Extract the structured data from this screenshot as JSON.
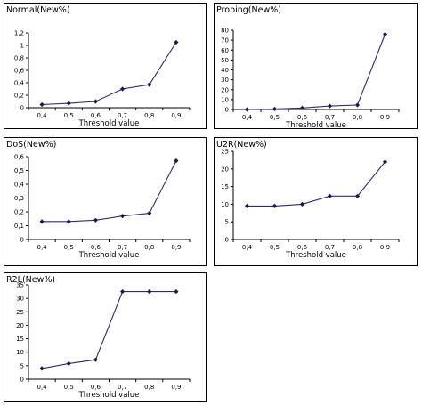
{
  "chart_data": [
    {
      "type": "line",
      "title": "Normal(New%)",
      "xlabel": "Threshold value",
      "ylabel": "",
      "x": [
        "0,4",
        "0,5",
        "0,6",
        "0,7",
        "0,8",
        "0,9"
      ],
      "values": [
        0.05,
        0.07,
        0.1,
        0.3,
        0.37,
        1.05
      ],
      "ylim": [
        0,
        1.2
      ],
      "yticks": [
        0,
        0.2,
        0.4,
        0.6,
        0.8,
        1,
        1.2
      ],
      "ytick_labels": [
        "0",
        "0,2",
        "0,4",
        "0,6",
        "0,8",
        "1",
        "1,2"
      ],
      "grid": false,
      "legend": false
    },
    {
      "type": "line",
      "title": "Probing(New%)",
      "xlabel": "Threshold value",
      "ylabel": "",
      "x": [
        "0,4",
        "0,5",
        "0,6",
        "0,7",
        "0,8",
        "0,9"
      ],
      "values": [
        0,
        0.5,
        1.5,
        3.5,
        4.5,
        76
      ],
      "ylim": [
        0,
        80
      ],
      "yticks": [
        0,
        10,
        20,
        30,
        40,
        50,
        60,
        70,
        80
      ],
      "ytick_labels": [
        "0",
        "10",
        "20",
        "30",
        "40",
        "50",
        "60",
        "70",
        "80"
      ],
      "grid": false,
      "legend": false
    },
    {
      "type": "line",
      "title": "DoS(New%)",
      "xlabel": "Threshold value",
      "ylabel": "",
      "x": [
        "0,4",
        "0,5",
        "0,6",
        "0,7",
        "0,8",
        "0,9"
      ],
      "values": [
        0.13,
        0.13,
        0.14,
        0.17,
        0.19,
        0.57
      ],
      "ylim": [
        0,
        0.6
      ],
      "yticks": [
        0,
        0.1,
        0.2,
        0.3,
        0.4,
        0.5,
        0.6
      ],
      "ytick_labels": [
        "0",
        "0,1",
        "0,2",
        "0,3",
        "0,4",
        "0,5",
        "0,6"
      ],
      "grid": false,
      "legend": false
    },
    {
      "type": "line",
      "title": "U2R(New%)",
      "xlabel": "Threshold value",
      "ylabel": "",
      "x": [
        "0,4",
        "0,5",
        "0,6",
        "0,7",
        "0,8",
        "0,9"
      ],
      "values": [
        9.5,
        9.5,
        10,
        12.3,
        12.3,
        22
      ],
      "ylim": [
        0,
        25
      ],
      "yticks": [
        0,
        5,
        10,
        15,
        20,
        25
      ],
      "ytick_labels": [
        "0",
        "5",
        "10",
        "15",
        "20",
        "25"
      ],
      "grid": false,
      "legend": false
    },
    {
      "type": "line",
      "title": "R2L(New%)",
      "xlabel": "Threshold value",
      "ylabel": "",
      "x": [
        "0,4",
        "0,5",
        "0,6",
        "0,7",
        "0,8",
        "0,9"
      ],
      "values": [
        4,
        5.8,
        7.2,
        32.5,
        32.5,
        32.5
      ],
      "ylim": [
        0,
        35
      ],
      "yticks": [
        0,
        5,
        10,
        15,
        20,
        25,
        30,
        35
      ],
      "ytick_labels": [
        "0",
        "5",
        "10",
        "15",
        "20",
        "25",
        "30",
        "35"
      ],
      "grid": false,
      "legend": false
    }
  ],
  "colors": {
    "line": "#2d2d6e",
    "marker": "#1a1a4e",
    "axis": "#000000",
    "frame": "#000000"
  }
}
